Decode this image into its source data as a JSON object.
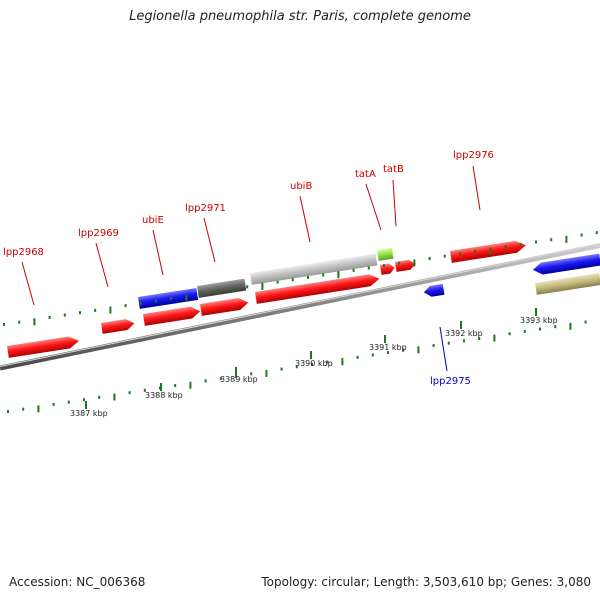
{
  "title": "Legionella pneumophila str. Paris, complete genome",
  "footer": {
    "accession": "Accession: NC_006368",
    "summary": "Topology: circular; Length: 3,503,610 bp; Genes: 3,080"
  },
  "colors": {
    "backbone": "#8a8a8a",
    "tick": "#1a7a1a",
    "red_feature": "#ff1a1a",
    "blue_feature": "#1a1aee",
    "dark_grey_feature": "#666666",
    "light_grey_feature": "#c4c4c4",
    "light_green_feature": "#9ee44a",
    "khaki_feature": "#c8bc80",
    "label_red": "#cc0000",
    "label_blue": "#0000cc"
  },
  "scale": {
    "unit": "kbp",
    "ticks": [
      {
        "value": 3387,
        "label": "3387 kbp"
      },
      {
        "value": 3388,
        "label": "3388 kbp"
      },
      {
        "value": 3389,
        "label": "3389 kbp"
      },
      {
        "value": 3390,
        "label": "3390 kbp"
      },
      {
        "value": 3391,
        "label": "3391 kbp"
      },
      {
        "value": 3392,
        "label": "3392 kbp"
      },
      {
        "value": 3393,
        "label": "3393 kbp"
      }
    ]
  },
  "gene_labels": [
    {
      "text": "lpp2968",
      "color": "red"
    },
    {
      "text": "lpp2969",
      "color": "red"
    },
    {
      "text": "ubiE",
      "color": "red"
    },
    {
      "text": "lpp2971",
      "color": "red"
    },
    {
      "text": "ubiB",
      "color": "red"
    },
    {
      "text": "tatA",
      "color": "red"
    },
    {
      "text": "tatB",
      "color": "red"
    },
    {
      "text": "lpp2976",
      "color": "red"
    },
    {
      "text": "lpp2975",
      "color": "blue"
    }
  ],
  "features": [
    {
      "color": "red",
      "strand": "forward"
    },
    {
      "color": "red",
      "strand": "forward"
    },
    {
      "color": "red",
      "strand": "forward"
    },
    {
      "color": "red",
      "strand": "forward"
    },
    {
      "color": "red",
      "strand": "forward"
    },
    {
      "color": "red",
      "strand": "forward"
    },
    {
      "color": "red",
      "strand": "forward"
    },
    {
      "color": "red",
      "strand": "forward"
    },
    {
      "color": "blue",
      "strand": "reverse"
    },
    {
      "color": "blue",
      "strand": "forward"
    },
    {
      "color": "dark_grey",
      "strand": "forward"
    },
    {
      "color": "light_grey",
      "strand": "forward"
    },
    {
      "color": "light_green",
      "strand": "forward"
    },
    {
      "color": "blue",
      "strand": "reverse"
    },
    {
      "color": "khaki",
      "strand": "forward"
    }
  ]
}
